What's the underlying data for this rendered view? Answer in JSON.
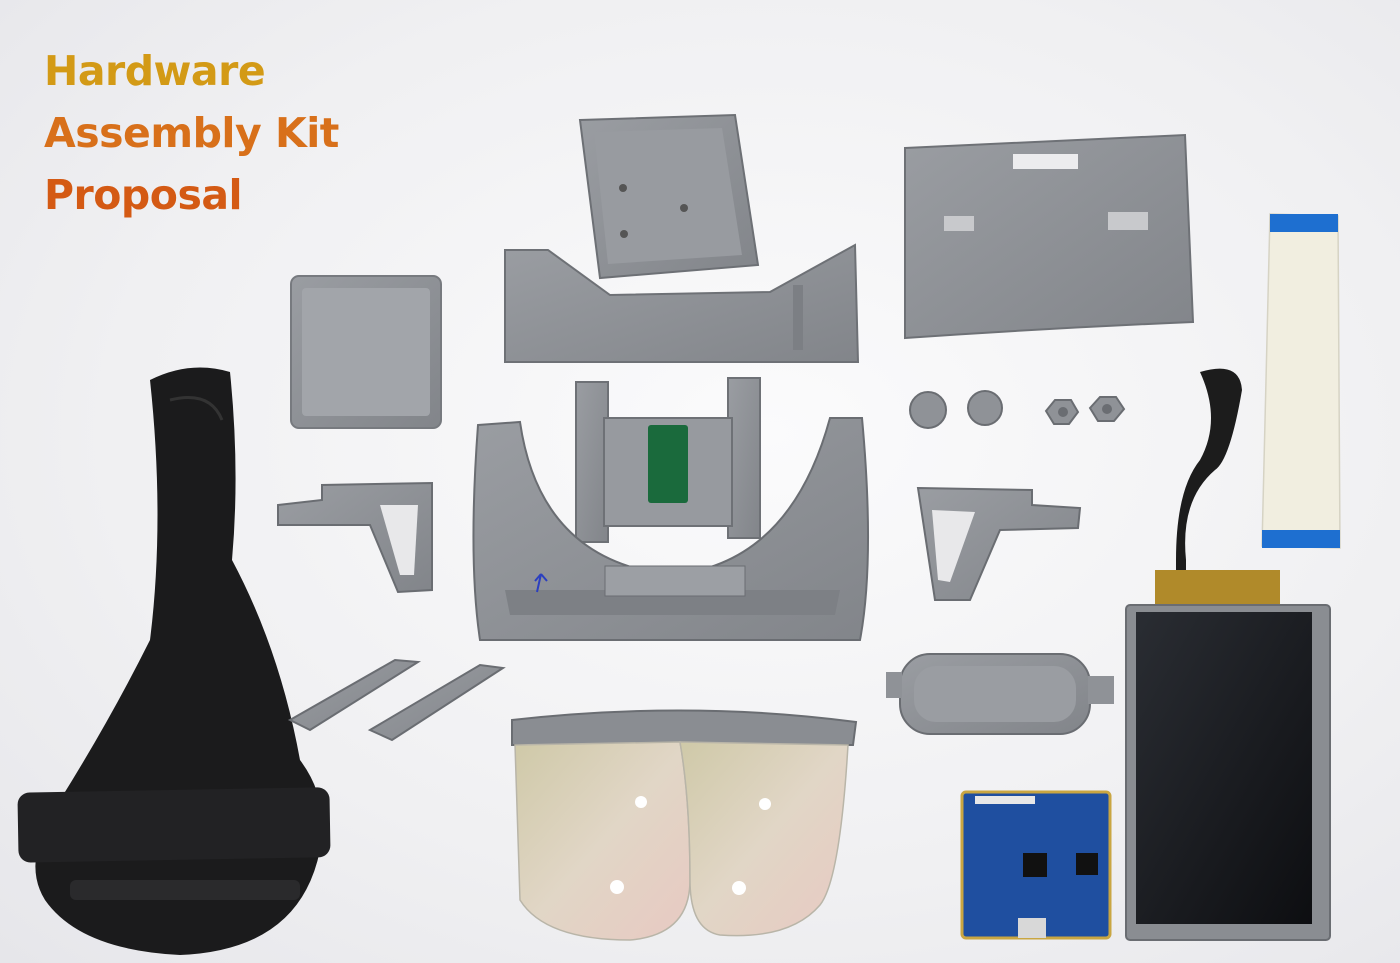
{
  "title": {
    "line1": "Hardware",
    "line2": "Assembly Kit",
    "line3": "Proposal"
  },
  "colors": {
    "title_line1": "#d39a16",
    "title_line2": "#d8701a",
    "title_line3": "#d45a14",
    "plastic": "#8e9196",
    "strap": "#1a1a1a",
    "pcb": "#1f4fa0",
    "flex_cable": "#f1eee0",
    "flex_tab": "#1e6fd0"
  }
}
